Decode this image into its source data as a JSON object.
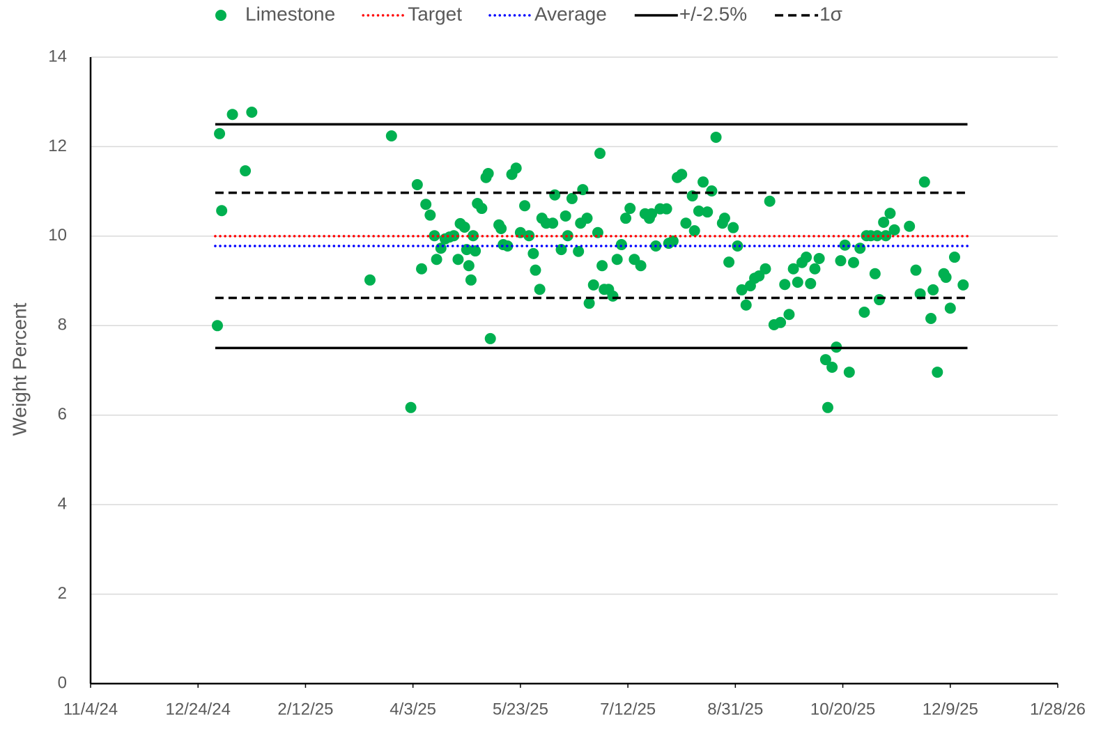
{
  "chart_data": {
    "type": "scatter",
    "ylabel": "Weight Percent",
    "xlim": [
      "11/4/24",
      "1/28/26"
    ],
    "xticks": [
      "11/4/24",
      "12/24/24",
      "2/12/25",
      "4/3/25",
      "5/23/25",
      "7/12/25",
      "8/31/25",
      "10/20/25",
      "12/9/25",
      "1/28/26"
    ],
    "ylim": [
      0,
      14
    ],
    "yticks": [
      0,
      2,
      4,
      6,
      8,
      10,
      12,
      14
    ],
    "grid": true,
    "legend": "top",
    "series": [
      {
        "name": "Limestone",
        "kind": "points",
        "color": "#00b050",
        "x": [
          "1/2/25",
          "1/3/25",
          "1/4/25",
          "1/9/25",
          "1/15/25",
          "1/18/25",
          "3/14/25",
          "3/24/25",
          "4/2/25",
          "4/5/25",
          "4/7/25",
          "4/9/25",
          "4/11/25",
          "4/13/25",
          "4/14/25",
          "4/16/25",
          "4/18/25",
          "4/20/25",
          "4/22/25",
          "4/24/25",
          "4/25/25",
          "4/27/25",
          "4/28/25",
          "4/29/25",
          "4/30/25",
          "5/1/25",
          "5/2/25",
          "5/3/25",
          "5/5/25",
          "5/7/25",
          "5/8/25",
          "5/9/25",
          "5/13/25",
          "5/14/25",
          "5/15/25",
          "5/17/25",
          "5/19/25",
          "5/21/25",
          "5/23/25",
          "5/25/25",
          "5/27/25",
          "5/29/25",
          "5/30/25",
          "6/1/25",
          "6/2/25",
          "6/4/25",
          "6/7/25",
          "6/8/25",
          "6/11/25",
          "6/13/25",
          "6/14/25",
          "6/16/25",
          "6/19/25",
          "6/20/25",
          "6/21/25",
          "6/23/25",
          "6/24/25",
          "6/26/25",
          "6/28/25",
          "6/29/25",
          "6/30/25",
          "7/1/25",
          "7/3/25",
          "7/5/25",
          "7/7/25",
          "7/9/25",
          "7/11/25",
          "7/13/25",
          "7/15/25",
          "7/18/25",
          "7/20/25",
          "7/22/25",
          "7/23/25",
          "7/25/25",
          "7/27/25",
          "7/30/25",
          "7/31/25",
          "8/2/25",
          "8/4/25",
          "8/6/25",
          "8/8/25",
          "8/11/25",
          "8/12/25",
          "8/14/25",
          "8/16/25",
          "8/18/25",
          "8/20/25",
          "8/22/25",
          "8/25/25",
          "8/26/25",
          "8/28/25",
          "8/30/25",
          "9/1/25",
          "9/3/25",
          "9/5/25",
          "9/7/25",
          "9/9/25",
          "9/11/25",
          "9/14/25",
          "9/16/25",
          "9/18/25",
          "9/21/25",
          "9/23/25",
          "9/25/25",
          "9/27/25",
          "9/29/25",
          "10/1/25",
          "10/3/25",
          "10/5/25",
          "10/7/25",
          "10/9/25",
          "10/12/25",
          "10/13/25",
          "10/15/25",
          "10/17/25",
          "10/19/25",
          "10/21/25",
          "10/23/25",
          "10/25/25",
          "10/28/25",
          "10/30/25",
          "10/31/25",
          "11/2/25",
          "11/4/25",
          "11/5/25",
          "11/6/25",
          "11/8/25",
          "11/9/25",
          "11/11/25",
          "11/13/25",
          "11/20/25",
          "11/23/25",
          "11/25/25",
          "11/27/25",
          "11/30/25",
          "12/1/25",
          "12/3/25",
          "12/6/25",
          "12/7/25",
          "12/9/25",
          "12/11/25",
          "12/15/25"
        ],
        "values": [
          8.0,
          12.29,
          10.57,
          12.72,
          11.46,
          12.77,
          9.02,
          12.24,
          6.17,
          11.15,
          9.27,
          10.71,
          10.47,
          10.01,
          9.48,
          9.73,
          9.94,
          9.98,
          10.01,
          9.48,
          10.28,
          10.2,
          9.7,
          9.34,
          9.02,
          10.01,
          9.67,
          10.73,
          10.62,
          11.31,
          11.4,
          7.71,
          10.25,
          10.17,
          9.81,
          9.78,
          11.38,
          11.52,
          10.08,
          10.68,
          10.01,
          9.61,
          9.24,
          8.81,
          10.4,
          10.29,
          10.29,
          10.92,
          9.7,
          10.45,
          10.01,
          10.84,
          9.66,
          10.29,
          11.04,
          10.4,
          8.5,
          8.91,
          10.08,
          11.85,
          9.34,
          8.81,
          8.81,
          8.66,
          9.48,
          9.81,
          10.4,
          10.62,
          9.48,
          9.34,
          10.5,
          10.4,
          10.5,
          9.78,
          10.61,
          10.61,
          9.84,
          9.89,
          11.31,
          11.38,
          10.29,
          10.9,
          10.12,
          10.56,
          11.21,
          10.54,
          11.01,
          12.21,
          10.29,
          10.4,
          9.42,
          10.19,
          9.78,
          8.8,
          8.46,
          8.89,
          9.06,
          9.11,
          9.27,
          10.78,
          8.02,
          8.07,
          8.92,
          8.25,
          9.27,
          8.97,
          9.41,
          9.53,
          8.94,
          9.27,
          9.5,
          7.24,
          6.17,
          7.07,
          7.52,
          9.45,
          9.8,
          6.96,
          9.41,
          9.73,
          8.3,
          10.01,
          10.01,
          9.16,
          10.01,
          8.58,
          10.31,
          10.01,
          10.51,
          10.14,
          10.22,
          9.24,
          8.71,
          11.21,
          8.16,
          8.8,
          6.96,
          9.16,
          9.08,
          8.39,
          9.53,
          8.91
        ]
      },
      {
        "name": "Target",
        "kind": "dotted",
        "color": "#ff0000",
        "x": [
          "1/1/25",
          "12/17/25"
        ],
        "values": [
          10,
          10
        ]
      },
      {
        "name": "Average",
        "kind": "dotted",
        "color": "#0000ff",
        "x": [
          "1/1/25",
          "12/17/25"
        ],
        "values": [
          9.78,
          9.78
        ]
      },
      {
        "name": "+/-2.5%",
        "kind": "solid",
        "color": "#000000",
        "x": [
          "1/1/25",
          "12/17/25",
          null,
          "1/1/25",
          "12/17/25"
        ],
        "values": [
          12.5,
          12.5,
          null,
          7.5,
          7.5
        ]
      },
      {
        "name": "1σ",
        "kind": "dashed",
        "color": "#000000",
        "x": [
          "1/1/25",
          "12/17/25",
          null,
          "1/1/25",
          "12/17/25"
        ],
        "values": [
          10.97,
          10.97,
          null,
          8.62,
          8.62
        ]
      }
    ]
  }
}
